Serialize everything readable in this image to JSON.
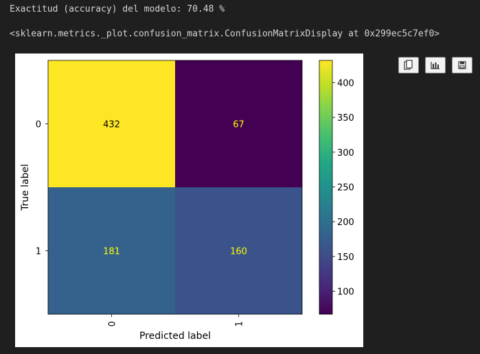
{
  "output": {
    "accuracy_line": "Exactitud (accuracy) del modelo: 70.48 %",
    "repr_line": "<sklearn.metrics._plot.confusion_matrix.ConfusionMatrixDisplay at 0x299ec5c7ef0>"
  },
  "toolbar": {
    "buttons": [
      {
        "name": "copy-button",
        "icon": "copy-icon"
      },
      {
        "name": "chart-button",
        "icon": "bar-chart-icon"
      },
      {
        "name": "save-button",
        "icon": "floppy-disk-icon"
      }
    ]
  },
  "chart_data": {
    "type": "heatmap",
    "xlabel": "Predicted label",
    "ylabel": "True label",
    "x_tick_labels": [
      "0",
      "1"
    ],
    "y_tick_labels": [
      "0",
      "1"
    ],
    "matrix": [
      [
        432,
        67
      ],
      [
        181,
        160
      ]
    ],
    "colormap": "viridis",
    "colorbar": {
      "ticks": [
        100,
        150,
        200,
        250,
        300,
        350,
        400
      ],
      "min": 67,
      "max": 432
    },
    "text_colors": {
      "dark_text": "#000000",
      "light_text": "#ffff00"
    }
  }
}
